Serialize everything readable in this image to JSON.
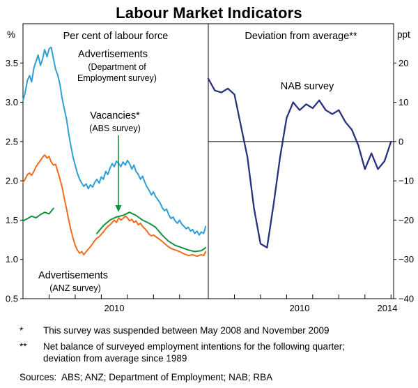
{
  "title": "Labour Market Indicators",
  "annotations": {
    "doe": [
      "Advertisements",
      "(Department of",
      "Employment survey)"
    ],
    "abs": [
      "Vacancies*",
      "(ABS survey)"
    ],
    "anz": [
      "Advertisements",
      "(ANZ survey)"
    ],
    "nab": "NAB survey"
  },
  "footnotes": [
    {
      "marker": "*",
      "text": "This survey was suspended between May 2008 and November 2009"
    },
    {
      "marker": "**",
      "text": "Net balance of surveyed employment intentions for the following quarter; deviation from average since 1989"
    }
  ],
  "sources": "Sources:  ABS; ANZ; Department of Employment; NAB; RBA",
  "chart_data": [
    {
      "type": "line",
      "panel": "left",
      "title": "Per cent of labour force",
      "unit": "%",
      "ylim": [
        0.5,
        4.0
      ],
      "yticks": [
        0.5,
        1.0,
        1.5,
        2.0,
        2.5,
        3.0,
        3.5
      ],
      "decimals": 1,
      "xlim": [
        2007,
        2014.1
      ],
      "year_ticks": [
        2008,
        2009,
        2010,
        2011,
        2012,
        2013
      ],
      "xtick_labels": [
        "2010"
      ],
      "grid": false,
      "series": [
        {
          "name": "Advertisements (ANZ survey)",
          "color": "#ef6c1f",
          "points": [
            [
              2007.0,
              1.98
            ],
            [
              2007.08,
              2.02
            ],
            [
              2007.17,
              2.08
            ],
            [
              2007.25,
              2.1
            ],
            [
              2007.33,
              2.07
            ],
            [
              2007.42,
              2.12
            ],
            [
              2007.5,
              2.18
            ],
            [
              2007.58,
              2.22
            ],
            [
              2007.67,
              2.26
            ],
            [
              2007.75,
              2.3
            ],
            [
              2007.83,
              2.33
            ],
            [
              2007.92,
              2.29
            ],
            [
              2008.0,
              2.31
            ],
            [
              2008.08,
              2.24
            ],
            [
              2008.17,
              2.2
            ],
            [
              2008.25,
              2.21
            ],
            [
              2008.33,
              2.12
            ],
            [
              2008.42,
              2.02
            ],
            [
              2008.5,
              1.92
            ],
            [
              2008.58,
              1.78
            ],
            [
              2008.67,
              1.64
            ],
            [
              2008.75,
              1.5
            ],
            [
              2008.83,
              1.38
            ],
            [
              2008.92,
              1.27
            ],
            [
              2009.0,
              1.18
            ],
            [
              2009.08,
              1.12
            ],
            [
              2009.17,
              1.08
            ],
            [
              2009.25,
              1.1
            ],
            [
              2009.33,
              1.06
            ],
            [
              2009.42,
              1.1
            ],
            [
              2009.5,
              1.13
            ],
            [
              2009.58,
              1.16
            ],
            [
              2009.67,
              1.2
            ],
            [
              2009.75,
              1.24
            ],
            [
              2009.83,
              1.27
            ],
            [
              2009.92,
              1.29
            ],
            [
              2010.0,
              1.32
            ],
            [
              2010.08,
              1.35
            ],
            [
              2010.17,
              1.39
            ],
            [
              2010.25,
              1.42
            ],
            [
              2010.33,
              1.44
            ],
            [
              2010.42,
              1.47
            ],
            [
              2010.5,
              1.5
            ],
            [
              2010.58,
              1.47
            ],
            [
              2010.67,
              1.53
            ],
            [
              2010.75,
              1.5
            ],
            [
              2010.83,
              1.52
            ],
            [
              2010.92,
              1.55
            ],
            [
              2011.0,
              1.53
            ],
            [
              2011.08,
              1.49
            ],
            [
              2011.17,
              1.51
            ],
            [
              2011.25,
              1.47
            ],
            [
              2011.33,
              1.49
            ],
            [
              2011.42,
              1.44
            ],
            [
              2011.5,
              1.46
            ],
            [
              2011.58,
              1.42
            ],
            [
              2011.67,
              1.39
            ],
            [
              2011.75,
              1.36
            ],
            [
              2011.83,
              1.32
            ],
            [
              2011.92,
              1.3
            ],
            [
              2012.0,
              1.31
            ],
            [
              2012.17,
              1.27
            ],
            [
              2012.33,
              1.23
            ],
            [
              2012.5,
              1.18
            ],
            [
              2012.67,
              1.14
            ],
            [
              2012.83,
              1.12
            ],
            [
              2013.0,
              1.1
            ],
            [
              2013.17,
              1.07
            ],
            [
              2013.33,
              1.05
            ],
            [
              2013.5,
              1.06
            ],
            [
              2013.67,
              1.04
            ],
            [
              2013.83,
              1.06
            ],
            [
              2013.92,
              1.05
            ],
            [
              2014.0,
              1.1
            ]
          ]
        },
        {
          "name": "Vacancies (ABS survey)",
          "color": "#12913f",
          "segments": [
            [
              [
                2007.0,
                1.49
              ],
              [
                2007.17,
                1.52
              ],
              [
                2007.33,
                1.55
              ],
              [
                2007.5,
                1.53
              ],
              [
                2007.67,
                1.57
              ],
              [
                2007.83,
                1.6
              ],
              [
                2008.0,
                1.58
              ],
              [
                2008.17,
                1.65
              ]
            ],
            [
              [
                2009.83,
                1.33
              ],
              [
                2010.08,
                1.43
              ],
              [
                2010.33,
                1.5
              ],
              [
                2010.58,
                1.54
              ],
              [
                2010.83,
                1.56
              ],
              [
                2011.08,
                1.6
              ],
              [
                2011.33,
                1.56
              ],
              [
                2011.58,
                1.5
              ],
              [
                2011.83,
                1.46
              ],
              [
                2012.08,
                1.41
              ],
              [
                2012.33,
                1.31
              ],
              [
                2012.58,
                1.23
              ],
              [
                2012.83,
                1.18
              ],
              [
                2013.08,
                1.15
              ],
              [
                2013.33,
                1.12
              ],
              [
                2013.58,
                1.1
              ],
              [
                2013.83,
                1.11
              ],
              [
                2014.0,
                1.15
              ]
            ]
          ]
        },
        {
          "name": "Advertisements (Department of Employment survey)",
          "color": "#2e9ed6",
          "points": [
            [
              2007.0,
              3.02
            ],
            [
              2007.08,
              3.12
            ],
            [
              2007.17,
              3.28
            ],
            [
              2007.25,
              3.34
            ],
            [
              2007.33,
              3.26
            ],
            [
              2007.42,
              3.44
            ],
            [
              2007.5,
              3.52
            ],
            [
              2007.58,
              3.6
            ],
            [
              2007.67,
              3.47
            ],
            [
              2007.75,
              3.55
            ],
            [
              2007.83,
              3.67
            ],
            [
              2007.92,
              3.58
            ],
            [
              2008.0,
              3.68
            ],
            [
              2008.08,
              3.7
            ],
            [
              2008.17,
              3.55
            ],
            [
              2008.25,
              3.42
            ],
            [
              2008.33,
              3.35
            ],
            [
              2008.42,
              3.22
            ],
            [
              2008.5,
              3.05
            ],
            [
              2008.58,
              2.92
            ],
            [
              2008.67,
              2.78
            ],
            [
              2008.75,
              2.6
            ],
            [
              2008.83,
              2.45
            ],
            [
              2008.92,
              2.3
            ],
            [
              2009.0,
              2.2
            ],
            [
              2009.08,
              2.1
            ],
            [
              2009.17,
              2.02
            ],
            [
              2009.25,
              1.97
            ],
            [
              2009.33,
              1.93
            ],
            [
              2009.42,
              1.96
            ],
            [
              2009.5,
              1.9
            ],
            [
              2009.58,
              1.95
            ],
            [
              2009.67,
              1.92
            ],
            [
              2009.75,
              1.98
            ],
            [
              2009.83,
              2.02
            ],
            [
              2009.92,
              1.97
            ],
            [
              2010.0,
              2.05
            ],
            [
              2010.08,
              2.02
            ],
            [
              2010.17,
              2.12
            ],
            [
              2010.25,
              2.08
            ],
            [
              2010.33,
              2.16
            ],
            [
              2010.42,
              2.22
            ],
            [
              2010.5,
              2.18
            ],
            [
              2010.58,
              2.25
            ],
            [
              2010.67,
              2.22
            ],
            [
              2010.75,
              2.18
            ],
            [
              2010.83,
              2.24
            ],
            [
              2010.92,
              2.2
            ],
            [
              2011.0,
              2.26
            ],
            [
              2011.08,
              2.22
            ],
            [
              2011.17,
              2.15
            ],
            [
              2011.25,
              2.2
            ],
            [
              2011.33,
              2.12
            ],
            [
              2011.42,
              2.08
            ],
            [
              2011.5,
              2.02
            ],
            [
              2011.58,
              2.06
            ],
            [
              2011.67,
              1.98
            ],
            [
              2011.75,
              1.92
            ],
            [
              2011.83,
              1.88
            ],
            [
              2011.92,
              1.82
            ],
            [
              2012.0,
              1.86
            ],
            [
              2012.08,
              1.8
            ],
            [
              2012.17,
              1.76
            ],
            [
              2012.25,
              1.72
            ],
            [
              2012.33,
              1.66
            ],
            [
              2012.42,
              1.62
            ],
            [
              2012.5,
              1.64
            ],
            [
              2012.58,
              1.57
            ],
            [
              2012.67,
              1.52
            ],
            [
              2012.75,
              1.54
            ],
            [
              2012.83,
              1.49
            ],
            [
              2012.92,
              1.46
            ],
            [
              2013.0,
              1.5
            ],
            [
              2013.08,
              1.45
            ],
            [
              2013.17,
              1.42
            ],
            [
              2013.25,
              1.39
            ],
            [
              2013.33,
              1.41
            ],
            [
              2013.42,
              1.36
            ],
            [
              2013.5,
              1.38
            ],
            [
              2013.58,
              1.33
            ],
            [
              2013.67,
              1.36
            ],
            [
              2013.75,
              1.31
            ],
            [
              2013.83,
              1.35
            ],
            [
              2013.92,
              1.33
            ],
            [
              2014.0,
              1.42
            ]
          ]
        }
      ]
    },
    {
      "type": "line",
      "panel": "right",
      "title": "Deviation from average**",
      "unit": "ppt",
      "ylim": [
        -40,
        30
      ],
      "yticks": [
        -40,
        -30,
        -20,
        -10,
        0,
        10,
        20
      ],
      "decimals": 0,
      "zero_line": true,
      "xlim": [
        2007,
        2014.1
      ],
      "year_ticks": [
        2008,
        2009,
        2010,
        2011,
        2012,
        2013,
        2014
      ],
      "xtick_labels": [
        "2010",
        "2014"
      ],
      "grid": false,
      "series": [
        {
          "name": "NAB survey",
          "color": "#27317e",
          "width": 2.3,
          "points": [
            [
              2007.0,
              16
            ],
            [
              2007.25,
              13
            ],
            [
              2007.5,
              12.5
            ],
            [
              2007.75,
              13.5
            ],
            [
              2008.0,
              12
            ],
            [
              2008.25,
              4
            ],
            [
              2008.5,
              -4
            ],
            [
              2008.75,
              -17
            ],
            [
              2009.0,
              -26
            ],
            [
              2009.25,
              -27
            ],
            [
              2009.5,
              -16
            ],
            [
              2009.75,
              -4
            ],
            [
              2010.0,
              6
            ],
            [
              2010.25,
              10
            ],
            [
              2010.5,
              8
            ],
            [
              2010.75,
              9.5
            ],
            [
              2011.0,
              8.5
            ],
            [
              2011.25,
              10.5
            ],
            [
              2011.5,
              8
            ],
            [
              2011.75,
              7
            ],
            [
              2012.0,
              8
            ],
            [
              2012.25,
              5
            ],
            [
              2012.5,
              3
            ],
            [
              2012.75,
              -1
            ],
            [
              2013.0,
              -7
            ],
            [
              2013.25,
              -3
            ],
            [
              2013.5,
              -7
            ],
            [
              2013.75,
              -5
            ],
            [
              2014.0,
              0
            ]
          ]
        }
      ]
    }
  ]
}
